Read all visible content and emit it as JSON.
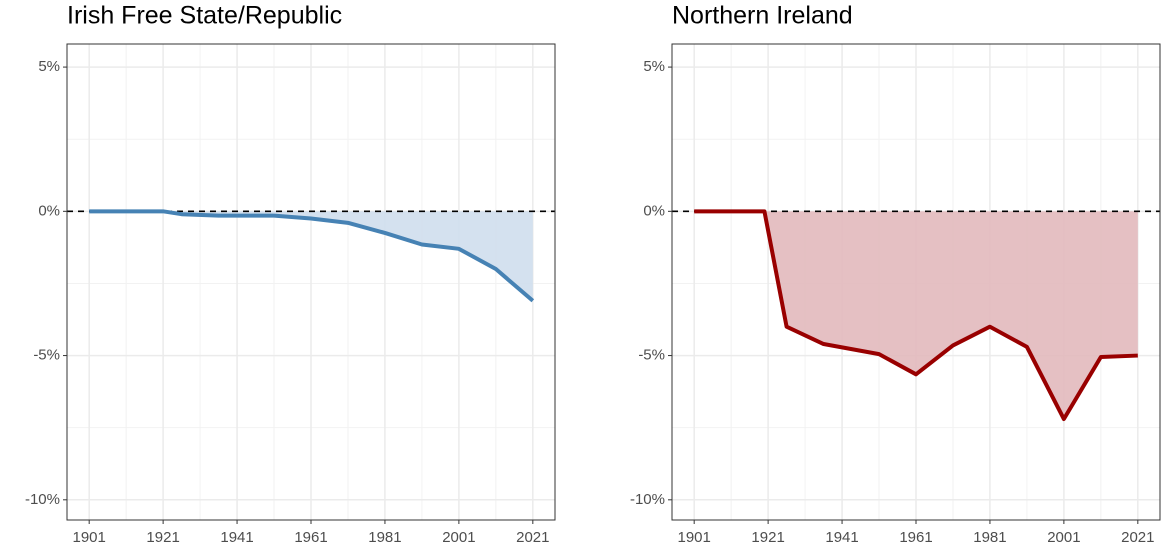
{
  "chart_data": [
    {
      "type": "area",
      "title": "Irish Free State/Republic",
      "x": [
        1901,
        1911,
        1921,
        1926,
        1936,
        1946,
        1951,
        1961,
        1971,
        1981,
        1991,
        2001,
        2011,
        2021
      ],
      "values": [
        0,
        0,
        0,
        -0.1,
        -0.15,
        -0.15,
        -0.15,
        -0.25,
        -0.4,
        -0.75,
        -1.15,
        -1.3,
        -2.0,
        -3.1
      ],
      "color": "#4682b4",
      "fill": "#cfdeed",
      "xlim": [
        1895,
        2027
      ],
      "xticks": [
        1901,
        1921,
        1941,
        1961,
        1981,
        2001,
        2021
      ],
      "minor_xticks": [
        1911,
        1931,
        1951,
        1971,
        1991,
        2011
      ],
      "ylim": [
        -10.7,
        5.8
      ],
      "yticks": [
        {
          "value": -10,
          "label": "-10%"
        },
        {
          "value": -5,
          "label": "-5%"
        },
        {
          "value": 0,
          "label": "0%"
        },
        {
          "value": 5,
          "label": "5%"
        }
      ],
      "minor_yticks": [
        -7.5,
        -2.5,
        2.5
      ],
      "hline": 0,
      "grid": true
    },
    {
      "type": "area",
      "title": "Northern Ireland",
      "x": [
        1901,
        1911,
        1920,
        1926,
        1936,
        1951,
        1961,
        1971,
        1981,
        1991,
        2001,
        2011,
        2021
      ],
      "values": [
        0,
        0,
        0,
        -4.0,
        -4.6,
        -4.95,
        -5.65,
        -4.65,
        -4.0,
        -4.7,
        -7.2,
        -5.05,
        -5.0
      ],
      "color": "#990000",
      "fill": "#e2b9bc",
      "xlim": [
        1895,
        2027
      ],
      "xticks": [
        1901,
        1921,
        1941,
        1961,
        1981,
        2001,
        2021
      ],
      "minor_xticks": [
        1911,
        1931,
        1951,
        1971,
        1991,
        2011
      ],
      "ylim": [
        -10.7,
        5.8
      ],
      "yticks": [
        {
          "value": -10,
          "label": "-10%"
        },
        {
          "value": -5,
          "label": "-5%"
        },
        {
          "value": 0,
          "label": "0%"
        },
        {
          "value": 5,
          "label": "5%"
        }
      ],
      "minor_yticks": [
        -7.5,
        -2.5,
        2.5
      ],
      "hline": 0,
      "grid": true
    }
  ]
}
